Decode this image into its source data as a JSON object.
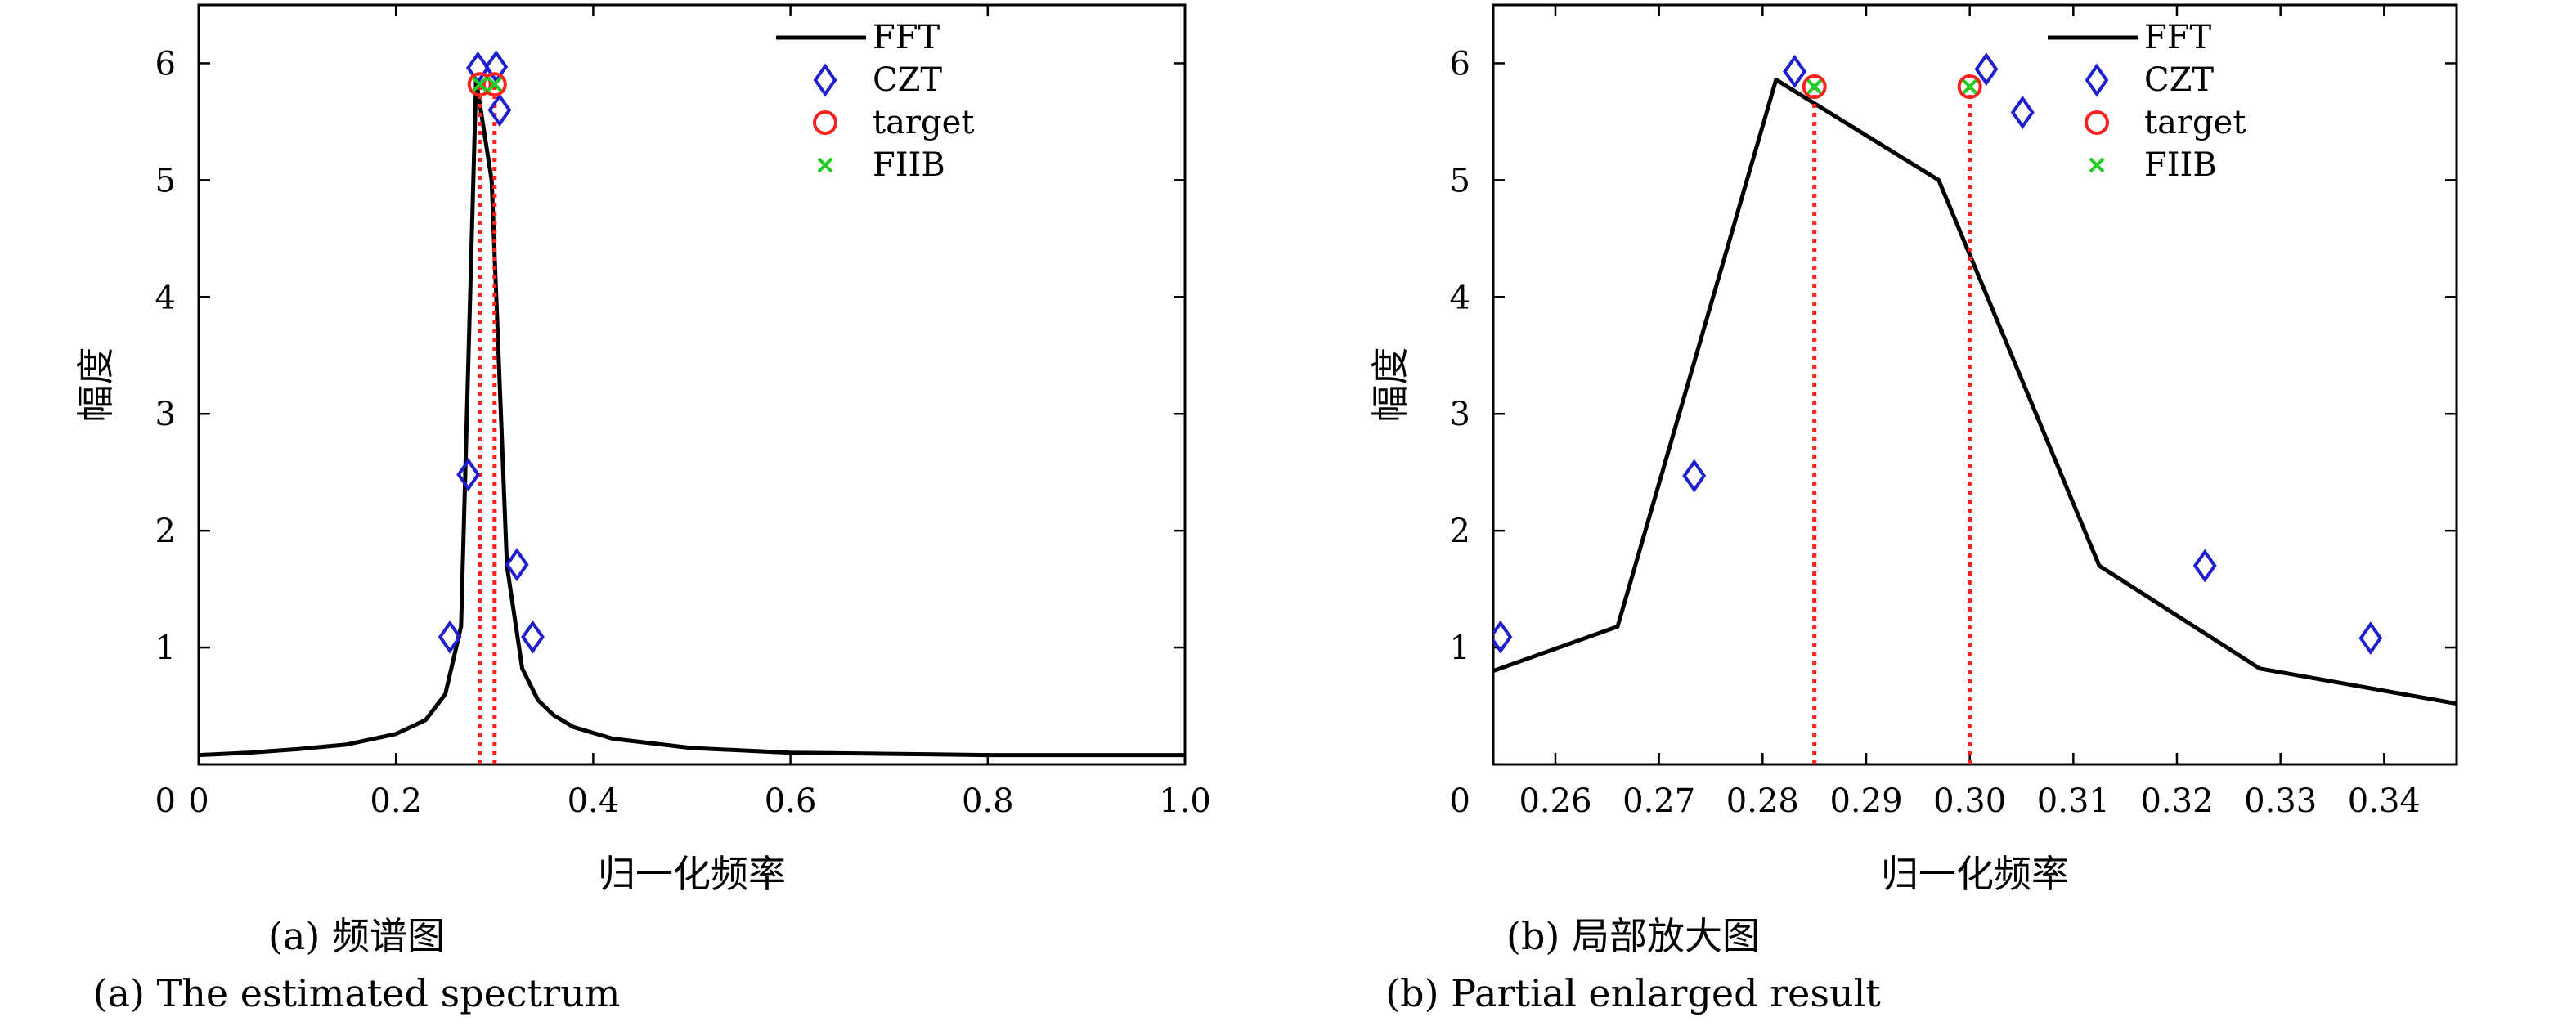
{
  "captions": {
    "a_cn": "(a) 频谱图",
    "a_en": "(a) The estimated spectrum",
    "b_cn": "(b) 局部放大图",
    "b_en": "(b) Partial enlarged result"
  },
  "chart_data": [
    {
      "type": "line",
      "xlabel": "归一化频率",
      "ylabel": "幅度",
      "xlim": [
        0,
        1
      ],
      "ylim": [
        0,
        6.5
      ],
      "xticks": [
        0,
        0.2,
        0.4,
        0.6,
        0.8,
        1.0
      ],
      "xtick_labels": [
        "0",
        "0.2",
        "0.4",
        "0.6",
        "0.8",
        "1.0"
      ],
      "yticks": [
        1,
        2,
        3,
        4,
        5,
        6
      ],
      "ytick_labels": [
        "1",
        "2",
        "3",
        "4",
        "5",
        "6"
      ],
      "origin_label": "0",
      "legend": [
        "FFT",
        "CZT",
        "target",
        "FIIB"
      ],
      "legend_position": "top-right",
      "colors": {
        "FFT": "#000000",
        "CZT": "#1f1fd0",
        "target": "#ff2020",
        "FIIB": "#22cc22",
        "vlines": "#ff2020"
      },
      "series": [
        {
          "name": "FFT",
          "kind": "line",
          "x": [
            0.0,
            0.05,
            0.1,
            0.15,
            0.2,
            0.23,
            0.25,
            0.266,
            0.2813,
            0.297,
            0.3125,
            0.328,
            0.344,
            0.36,
            0.38,
            0.42,
            0.5,
            0.6,
            0.7,
            0.8,
            0.9,
            1.0
          ],
          "y": [
            0.08,
            0.1,
            0.13,
            0.17,
            0.26,
            0.38,
            0.6,
            1.18,
            5.86,
            5.0,
            1.7,
            0.82,
            0.55,
            0.42,
            0.32,
            0.22,
            0.14,
            0.1,
            0.09,
            0.08,
            0.08,
            0.08
          ]
        },
        {
          "name": "CZT",
          "kind": "diamond",
          "x": [
            0.2547,
            0.2734,
            0.2831,
            0.3016,
            0.3051,
            0.3227,
            0.3387
          ],
          "y": [
            1.09,
            2.48,
            5.96,
            5.97,
            5.6,
            1.71,
            1.09
          ]
        },
        {
          "name": "target",
          "kind": "circle",
          "x": [
            0.285,
            0.3
          ],
          "y": [
            5.82,
            5.82
          ]
        },
        {
          "name": "FIIB",
          "kind": "cross",
          "x": [
            0.285,
            0.3
          ],
          "y": [
            5.82,
            5.82
          ]
        }
      ],
      "vlines": [
        0.285,
        0.3
      ]
    },
    {
      "type": "line",
      "xlabel": "归一化频率",
      "ylabel": "幅度",
      "xlim": [
        0.254,
        0.347
      ],
      "ylim": [
        0,
        6.5
      ],
      "xticks": [
        0.26,
        0.27,
        0.28,
        0.29,
        0.3,
        0.31,
        0.32,
        0.33,
        0.34
      ],
      "xtick_labels": [
        "0.26",
        "0.27",
        "0.28",
        "0.29",
        "0.30",
        "0.31",
        "0.32",
        "0.33",
        "0.34"
      ],
      "yticks": [
        1,
        2,
        3,
        4,
        5,
        6
      ],
      "ytick_labels": [
        "1",
        "2",
        "3",
        "4",
        "5",
        "6"
      ],
      "origin_label": "0",
      "legend": [
        "FFT",
        "CZT",
        "target",
        "FIIB"
      ],
      "legend_position": "top-right",
      "colors": {
        "FFT": "#000000",
        "CZT": "#1f1fd0",
        "target": "#ff2020",
        "FIIB": "#22cc22",
        "vlines": "#ff2020"
      },
      "series": [
        {
          "name": "FFT",
          "kind": "line",
          "x": [
            0.254,
            0.266,
            0.2813,
            0.297,
            0.3125,
            0.328,
            0.347
          ],
          "y": [
            0.8,
            1.18,
            5.86,
            5.0,
            1.7,
            0.82,
            0.52
          ]
        },
        {
          "name": "CZT",
          "kind": "diamond",
          "x": [
            0.2547,
            0.2734,
            0.2831,
            0.3016,
            0.3051,
            0.3227,
            0.3387
          ],
          "y": [
            1.09,
            2.47,
            5.93,
            5.95,
            5.58,
            1.7,
            1.08
          ]
        },
        {
          "name": "target",
          "kind": "circle",
          "x": [
            0.285,
            0.3
          ],
          "y": [
            5.8,
            5.8
          ]
        },
        {
          "name": "FIIB",
          "kind": "cross",
          "x": [
            0.285,
            0.3
          ],
          "y": [
            5.8,
            5.8
          ]
        }
      ],
      "vlines": [
        0.285,
        0.3
      ]
    }
  ]
}
